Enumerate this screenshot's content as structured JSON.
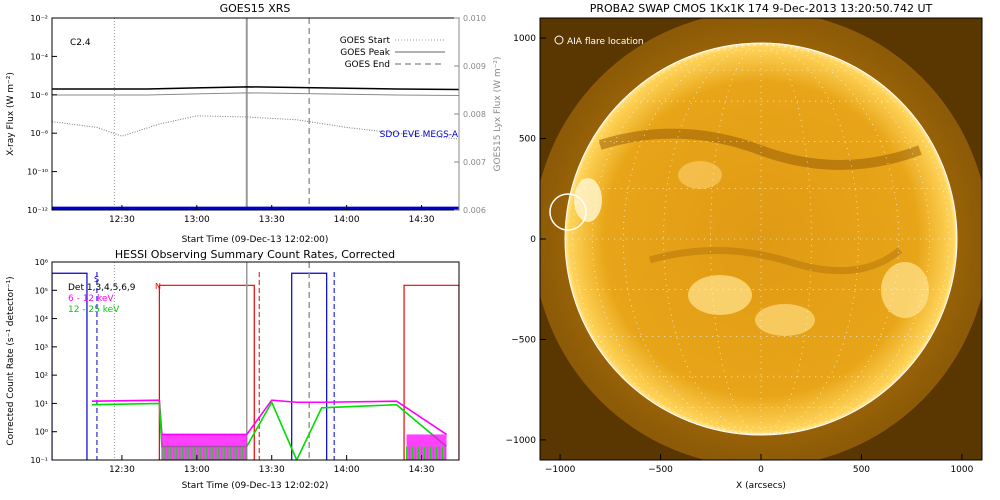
{
  "chart_data": [
    {
      "type": "line",
      "title": "GOES15 XRS",
      "xlabel": "Start Time (09-Dec-13 12:02:00)",
      "ylabel": "X-ray Flux (W m⁻²)",
      "y2label": "GOES15 Lyx Flux (W m⁻²)",
      "yscale": "log",
      "ylim": [
        1e-12,
        0.01
      ],
      "y2lim": [
        0.006,
        0.01
      ],
      "x_ticks": [
        "12:30",
        "13:00",
        "13:30",
        "14:00",
        "14:30"
      ],
      "y_ticks": [
        "10⁻²",
        "10⁻⁴",
        "10⁻⁶",
        "10⁻⁸",
        "10⁻¹⁰",
        "10⁻¹²"
      ],
      "y2_ticks": [
        "0.010",
        "0.009",
        "0.008",
        "0.007",
        "0.006"
      ],
      "annotation": "C2.4",
      "legend": [
        "GOES Start",
        "GOES Peak",
        "GOES End"
      ],
      "legend_position": "top-right",
      "extra_label": "SDO EVE MEGS-A",
      "colors": {
        "long": "#000000",
        "short_channel": "#7a7a7a",
        "megs": "#0000cc",
        "marker": "#999999"
      },
      "series": [
        {
          "name": "",
          "x": [
            "12:02",
            "12:20",
            "12:40",
            "13:00",
            "13:20",
            "13:40",
            "14:00",
            "14:20",
            "14:45"
          ],
          "values": [
            2e-06,
            2e-06,
            2e-06,
            2.3e-06,
            2.6e-06,
            2.4e-06,
            2.2e-06,
            2e-06,
            1.9e-06
          ]
        },
        {
          "name": "",
          "x": [
            "12:02",
            "12:20",
            "12:30",
            "12:45",
            "13:00",
            "13:20",
            "13:40",
            "14:00",
            "14:20",
            "14:45"
          ],
          "values": [
            4e-08,
            2e-08,
            7e-09,
            3e-08,
            8e-08,
            7e-08,
            5e-08,
            2e-08,
            1e-08,
            5e-09
          ]
        },
        {
          "name": "SDO EVE MEGS-A",
          "x": [
            "12:02",
            "14:45"
          ],
          "values": [
            0.00604,
            0.00604
          ]
        }
      ],
      "markers": [
        {
          "label": "GOES Start",
          "time": "12:27",
          "style": "dotted"
        },
        {
          "label": "GOES Peak",
          "time": "13:20",
          "style": "solid"
        },
        {
          "label": "GOES End",
          "time": "13:45",
          "style": "dashed"
        }
      ]
    },
    {
      "type": "line",
      "title": "HESSI Observing Summary Count Rates, Corrected",
      "xlabel": "Start Time (09-Dec-13 12:02:02)",
      "ylabel": "Corrected Count Rate (s⁻¹ detector⁻¹)",
      "yscale": "log",
      "ylim": [
        0.1,
        1000000.0
      ],
      "x_ticks": [
        "12:30",
        "13:00",
        "13:30",
        "14:00",
        "14:30"
      ],
      "y_ticks": [
        "10⁶",
        "10⁵",
        "10⁴",
        "10³",
        "10²",
        "10¹",
        "10⁰",
        "10⁻¹"
      ],
      "legend_text": "Det 1,3,4,5,6,9",
      "legend_position": "top-left",
      "annotations": [
        "S",
        "N"
      ],
      "colors": {
        "low": "#ff00ff",
        "high": "#00dd00",
        "saa": "#0000cc",
        "night": "#ee0000"
      },
      "series": [
        {
          "name": "6 - 12 keV",
          "color": "#ff00ff",
          "x": [
            "12:18",
            "12:45",
            "12:46",
            "13:20",
            "13:30",
            "13:40",
            "13:50",
            "14:20",
            "14:40"
          ],
          "values": [
            12,
            13,
            0.8,
            0.8,
            13,
            11,
            11,
            12,
            0.8
          ]
        },
        {
          "name": "12 - 25 keV",
          "color": "#00dd00",
          "x": [
            "12:18",
            "12:45",
            "12:46",
            "13:20",
            "13:30",
            "13:40",
            "13:50",
            "14:20",
            "14:40"
          ],
          "values": [
            9,
            10,
            0.3,
            0.3,
            11,
            0.1,
            7,
            9,
            0.3
          ]
        }
      ]
    },
    {
      "type": "heatmap",
      "title": "PROBA2 SWAP CMOS 1Kx1K 174  9-Dec-2013 13:20:50.742 UT",
      "xlabel": "X (arcsecs)",
      "ylabel": "",
      "xlim": [
        -1100,
        1100
      ],
      "ylim": [
        -1100,
        1100
      ],
      "x_ticks": [
        "−1000",
        "−500",
        "0",
        "500",
        "1000"
      ],
      "y_ticks": [
        "1000",
        "500",
        "0",
        "−500",
        "−1000"
      ],
      "legend": "AIA flare location",
      "legend_position": "top-left",
      "flare_location": {
        "x": -950,
        "y": 170
      },
      "solar_radius_arcsec": 970,
      "colors": {
        "disk": "#e8a010",
        "corona": "#7a4a00",
        "limb": "#ffffff"
      }
    }
  ]
}
